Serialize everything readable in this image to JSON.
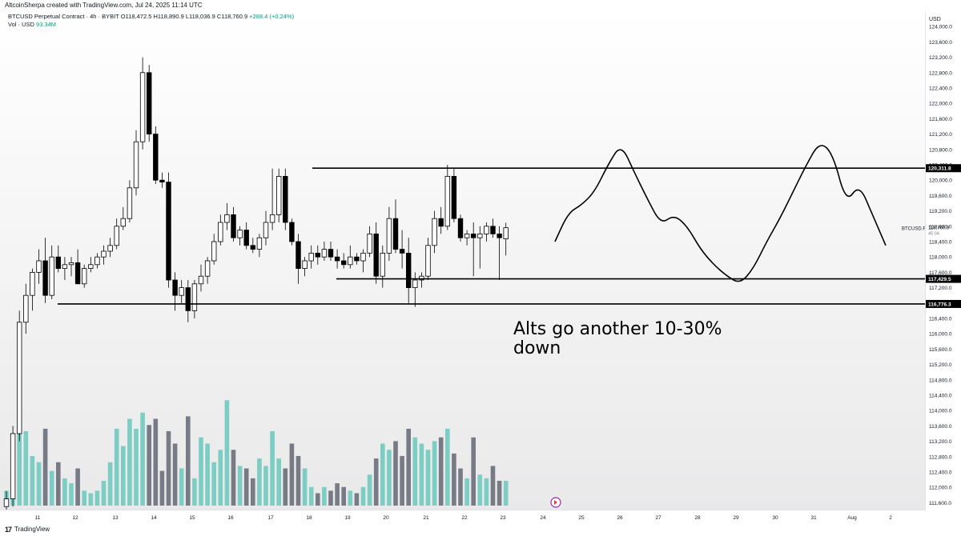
{
  "header": {
    "attribution": "AltcoinSherpa created with TradingView.com, Jul 24, 2025 11:14 UTC"
  },
  "legend": {
    "symbol": "BTCUSD Perpetual Contract · 4h · BYBIT",
    "open": "O118,472.5",
    "high": "H118,890.9",
    "low": "L118,036.9",
    "close": "C118,760.9",
    "change": "+288.4 (+0.24%)",
    "volume_label": "Vol · USD",
    "volume_value": "93.34M"
  },
  "annotation": {
    "line1": "Alts go another 10-30%",
    "line2": "down"
  },
  "price_axis": {
    "currency": "USD",
    "ticks": [
      "124,000.0",
      "123,600.0",
      "123,200.0",
      "122,800.0",
      "122,400.0",
      "122,000.0",
      "121,600.0",
      "121,200.0",
      "120,800.0",
      "120,400.0",
      "120,000.0",
      "119,600.0",
      "119,200.0",
      "118,800.0",
      "118,400.0",
      "118,000.0",
      "117,600.0",
      "117,200.0",
      "116,800.0",
      "116,400.0",
      "116,000.0",
      "115,600.0",
      "115,200.0",
      "114,800.0",
      "114,400.0",
      "114,000.0",
      "113,600.0",
      "113,200.0",
      "112,800.0",
      "112,400.0",
      "112,000.0",
      "111,600.0"
    ],
    "level_labels": [
      "120,311.8",
      "117,429.5",
      "116,776.3"
    ],
    "last_symbol": "BTCUSD.P",
    "last_price": "118,760.9",
    "last_countdown": "45:04"
  },
  "time_axis": {
    "labels": [
      "11",
      "12",
      "13",
      "14",
      "15",
      "16",
      "17",
      "18",
      "19",
      "20",
      "21",
      "22",
      "23",
      "24",
      "25",
      "26",
      "27",
      "28",
      "29",
      "30",
      "31",
      "Aug",
      "2"
    ]
  },
  "footer": {
    "brand": "TradingView"
  },
  "colors": {
    "up": "#089981",
    "down": "#f23645",
    "vol_up": "#7ccdc4",
    "vol_down": "#787b86",
    "line": "#000000"
  },
  "chart_data": {
    "type": "candlestick",
    "timeframe": "4h",
    "ylim": [
      111400,
      124400
    ],
    "levels": [
      120311.8,
      117429.5,
      116776.3
    ],
    "candles": [
      {
        "o": 111500,
        "h": 111900,
        "l": 111300,
        "c": 111700,
        "v": 12
      },
      {
        "o": 111700,
        "h": 113600,
        "l": 111500,
        "c": 113400,
        "v": 30
      },
      {
        "o": 113400,
        "h": 116600,
        "l": 113200,
        "c": 116300,
        "v": 95
      },
      {
        "o": 116300,
        "h": 117300,
        "l": 116000,
        "c": 117000,
        "v": 60
      },
      {
        "o": 117000,
        "h": 117700,
        "l": 116600,
        "c": 117600,
        "v": 40
      },
      {
        "o": 117600,
        "h": 118200,
        "l": 117300,
        "c": 117900,
        "v": 35
      },
      {
        "o": 117900,
        "h": 118500,
        "l": 116800,
        "c": 117000,
        "v": 62
      },
      {
        "o": 117000,
        "h": 118300,
        "l": 116900,
        "c": 118000,
        "v": 28
      },
      {
        "o": 118000,
        "h": 118300,
        "l": 117600,
        "c": 117700,
        "v": 35
      },
      {
        "o": 117700,
        "h": 118000,
        "l": 117400,
        "c": 117800,
        "v": 22
      },
      {
        "o": 117800,
        "h": 118000,
        "l": 117500,
        "c": 117850,
        "v": 18
      },
      {
        "o": 117850,
        "h": 118200,
        "l": 117300,
        "c": 117300,
        "v": 30
      },
      {
        "o": 117300,
        "h": 117800,
        "l": 117200,
        "c": 117700,
        "v": 12
      },
      {
        "o": 117700,
        "h": 118000,
        "l": 117600,
        "c": 117800,
        "v": 10
      },
      {
        "o": 117800,
        "h": 118100,
        "l": 117700,
        "c": 118000,
        "v": 12
      },
      {
        "o": 118000,
        "h": 118300,
        "l": 117800,
        "c": 118150,
        "v": 20
      },
      {
        "o": 118150,
        "h": 118500,
        "l": 118000,
        "c": 118300,
        "v": 35
      },
      {
        "o": 118300,
        "h": 119000,
        "l": 118200,
        "c": 118800,
        "v": 62
      },
      {
        "o": 118800,
        "h": 119300,
        "l": 118700,
        "c": 119000,
        "v": 48
      },
      {
        "o": 119000,
        "h": 120000,
        "l": 118900,
        "c": 119800,
        "v": 70
      },
      {
        "o": 119800,
        "h": 121300,
        "l": 119600,
        "c": 121000,
        "v": 62
      },
      {
        "o": 121000,
        "h": 123200,
        "l": 120800,
        "c": 122800,
        "v": 75
      },
      {
        "o": 122800,
        "h": 123000,
        "l": 121000,
        "c": 121200,
        "v": 65
      },
      {
        "o": 121200,
        "h": 121400,
        "l": 119900,
        "c": 120000,
        "v": 70
      },
      {
        "o": 120000,
        "h": 120200,
        "l": 119800,
        "c": 119950,
        "v": 28
      },
      {
        "o": 119950,
        "h": 120200,
        "l": 117200,
        "c": 117400,
        "v": 60
      },
      {
        "o": 117400,
        "h": 117600,
        "l": 116600,
        "c": 117000,
        "v": 50
      },
      {
        "o": 117000,
        "h": 117400,
        "l": 116800,
        "c": 117200,
        "v": 30
      },
      {
        "o": 117200,
        "h": 117400,
        "l": 116300,
        "c": 116600,
        "v": 72
      },
      {
        "o": 116600,
        "h": 117400,
        "l": 116400,
        "c": 117300,
        "v": 22
      },
      {
        "o": 117300,
        "h": 117800,
        "l": 117100,
        "c": 117500,
        "v": 55
      },
      {
        "o": 117500,
        "h": 118000,
        "l": 117300,
        "c": 117900,
        "v": 50
      },
      {
        "o": 117900,
        "h": 118600,
        "l": 117800,
        "c": 118400,
        "v": 35
      },
      {
        "o": 118400,
        "h": 119100,
        "l": 118300,
        "c": 118900,
        "v": 45
      },
      {
        "o": 118900,
        "h": 119400,
        "l": 118700,
        "c": 119100,
        "v": 85
      },
      {
        "o": 119100,
        "h": 119300,
        "l": 118400,
        "c": 118500,
        "v": 45
      },
      {
        "o": 118500,
        "h": 118800,
        "l": 118300,
        "c": 118700,
        "v": 32
      },
      {
        "o": 118700,
        "h": 118900,
        "l": 118200,
        "c": 118300,
        "v": 30
      },
      {
        "o": 118300,
        "h": 118500,
        "l": 118100,
        "c": 118200,
        "v": 22
      },
      {
        "o": 118200,
        "h": 118600,
        "l": 118000,
        "c": 118500,
        "v": 38
      },
      {
        "o": 118500,
        "h": 119200,
        "l": 118300,
        "c": 118900,
        "v": 32
      },
      {
        "o": 118900,
        "h": 120300,
        "l": 118700,
        "c": 119100,
        "v": 60
      },
      {
        "o": 119100,
        "h": 120300,
        "l": 118900,
        "c": 120100,
        "v": 38
      },
      {
        "o": 120100,
        "h": 120300,
        "l": 118700,
        "c": 118900,
        "v": 30
      },
      {
        "o": 118900,
        "h": 119000,
        "l": 118300,
        "c": 118400,
        "v": 50
      },
      {
        "o": 118400,
        "h": 118600,
        "l": 117300,
        "c": 117700,
        "v": 40
      },
      {
        "o": 117700,
        "h": 118000,
        "l": 117500,
        "c": 117900,
        "v": 30
      },
      {
        "o": 117900,
        "h": 118300,
        "l": 117700,
        "c": 118100,
        "v": 15
      },
      {
        "o": 118100,
        "h": 118300,
        "l": 117800,
        "c": 118000,
        "v": 10
      },
      {
        "o": 118000,
        "h": 118400,
        "l": 117900,
        "c": 118200,
        "v": 15
      },
      {
        "o": 118200,
        "h": 118400,
        "l": 117900,
        "c": 118000,
        "v": 12
      },
      {
        "o": 118000,
        "h": 118200,
        "l": 117700,
        "c": 117900,
        "v": 18
      },
      {
        "o": 117900,
        "h": 118100,
        "l": 117700,
        "c": 117800,
        "v": 15
      },
      {
        "o": 117800,
        "h": 118300,
        "l": 117700,
        "c": 118000,
        "v": 12
      },
      {
        "o": 118000,
        "h": 118100,
        "l": 117800,
        "c": 117900,
        "v": 10
      },
      {
        "o": 117900,
        "h": 118200,
        "l": 117600,
        "c": 118100,
        "v": 15
      },
      {
        "o": 118100,
        "h": 118800,
        "l": 118000,
        "c": 118600,
        "v": 25
      },
      {
        "o": 118600,
        "h": 118900,
        "l": 117300,
        "c": 117500,
        "v": 38
      },
      {
        "o": 117500,
        "h": 118300,
        "l": 117200,
        "c": 118100,
        "v": 50
      },
      {
        "o": 118100,
        "h": 119300,
        "l": 117900,
        "c": 119000,
        "v": 45
      },
      {
        "o": 119000,
        "h": 119500,
        "l": 118100,
        "c": 118200,
        "v": 52
      },
      {
        "o": 118200,
        "h": 118700,
        "l": 117700,
        "c": 118100,
        "v": 40
      },
      {
        "o": 118100,
        "h": 118500,
        "l": 116800,
        "c": 117200,
        "v": 62
      },
      {
        "o": 117200,
        "h": 117600,
        "l": 116700,
        "c": 117400,
        "v": 55
      },
      {
        "o": 117400,
        "h": 117600,
        "l": 117200,
        "c": 117500,
        "v": 50
      },
      {
        "o": 117500,
        "h": 118500,
        "l": 117400,
        "c": 118300,
        "v": 45
      },
      {
        "o": 118300,
        "h": 119200,
        "l": 118100,
        "c": 119000,
        "v": 52
      },
      {
        "o": 119000,
        "h": 119300,
        "l": 118600,
        "c": 118800,
        "v": 55
      },
      {
        "o": 118800,
        "h": 120400,
        "l": 118700,
        "c": 120100,
        "v": 62
      },
      {
        "o": 120100,
        "h": 120300,
        "l": 118900,
        "c": 119000,
        "v": 42
      },
      {
        "o": 119000,
        "h": 119100,
        "l": 118400,
        "c": 118500,
        "v": 30
      },
      {
        "o": 118500,
        "h": 118700,
        "l": 118300,
        "c": 118600,
        "v": 22
      },
      {
        "o": 118600,
        "h": 118900,
        "l": 117500,
        "c": 118500,
        "v": 55
      },
      {
        "o": 118500,
        "h": 118800,
        "l": 117700,
        "c": 118600,
        "v": 25
      },
      {
        "o": 118600,
        "h": 118900,
        "l": 118400,
        "c": 118800,
        "v": 22
      },
      {
        "o": 118800,
        "h": 119000,
        "l": 118500,
        "c": 118600,
        "v": 32
      },
      {
        "o": 118600,
        "h": 118800,
        "l": 117400,
        "c": 118500,
        "v": 20
      },
      {
        "o": 118472.5,
        "h": 118890.9,
        "l": 118036.9,
        "c": 118760.9,
        "v": 20
      }
    ],
    "projection_path": [
      [
        0,
        118400
      ],
      [
        1,
        119150
      ],
      [
        2,
        119350
      ],
      [
        3,
        119700
      ],
      [
        4,
        120400
      ],
      [
        5,
        120950
      ],
      [
        6,
        120200
      ],
      [
        7,
        119500
      ],
      [
        8,
        118850
      ],
      [
        9,
        119100
      ],
      [
        10,
        118800
      ],
      [
        11,
        118200
      ],
      [
        12,
        117800
      ],
      [
        13,
        117500
      ],
      [
        14,
        117300
      ],
      [
        15,
        117700
      ],
      [
        16,
        118400
      ],
      [
        17,
        119000
      ],
      [
        18,
        119700
      ],
      [
        19,
        120400
      ],
      [
        20,
        121000
      ],
      [
        21,
        120700
      ],
      [
        22,
        119400
      ],
      [
        23,
        119900
      ],
      [
        24,
        119100
      ],
      [
        25,
        118300
      ]
    ]
  }
}
